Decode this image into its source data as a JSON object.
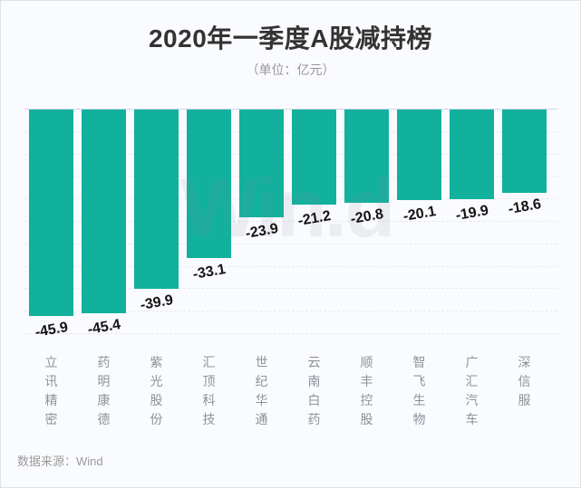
{
  "title": "2020年一季度A股减持榜",
  "subtitle": "（单位：亿元）",
  "source": "数据来源：Wind",
  "watermark": "Win.d",
  "colors": {
    "bar": "#12b19e",
    "axis_line": "#ccd6ea",
    "gridline": "#e7e9ee",
    "title": "#333333",
    "subtitle": "#999999",
    "value_label": "#141414",
    "category_label": "#8d929b",
    "source": "#9b9b9b",
    "background": "#fafbfe"
  },
  "chart_data": {
    "type": "bar",
    "title": "2020年一季度A股减持榜",
    "subtitle": "（单位：亿元）",
    "categories": [
      "立讯精密",
      "药明康德",
      "紫光股份",
      "汇顶科技",
      "世纪华通",
      "云南白药",
      "顺丰控股",
      "智飞生物",
      "广汇汽车",
      "深信服"
    ],
    "values": [
      -45.9,
      -45.4,
      -39.9,
      -33.1,
      -23.9,
      -21.2,
      -20.8,
      -20.1,
      -19.9,
      -18.6
    ],
    "value_labels": [
      "-45.9",
      "-45.4",
      "-39.9",
      "-33.1",
      "-23.9",
      "-21.2",
      "-20.8",
      "-20.1",
      "-19.9",
      "-18.6"
    ],
    "xlabel": "",
    "ylabel": "亿元",
    "ylim": [
      -50,
      0
    ],
    "grid_step": 5,
    "grid": "dashed-horizontal",
    "bar_direction": "down-from-zero-axis",
    "legend": "none",
    "data_label_style": "bold, rotated -10deg, below bar end",
    "category_label_style": "vertical stacked characters, gray",
    "source_note": "数据来源：Wind"
  }
}
